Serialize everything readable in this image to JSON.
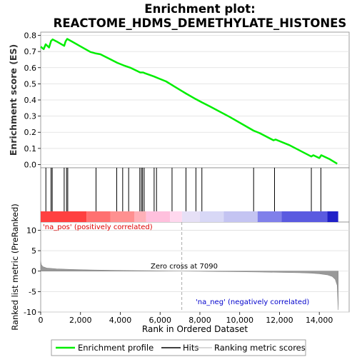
{
  "chart_data": {
    "type": "line",
    "title_line1": "Enrichment plot:",
    "title_line2": "REACTOME_HDMS_DEMETHYLATE_HISTONES",
    "xlabel": "Rank in Ordered Dataset",
    "es_panel": {
      "ylabel": "Enrichment score (ES)",
      "ylim": [
        -0.02,
        0.82
      ],
      "yticks": [
        "0.0",
        "0.1",
        "0.2",
        "0.3",
        "0.4",
        "0.5",
        "0.6",
        "0.7",
        "0.8"
      ],
      "ytick_values": [
        0.0,
        0.1,
        0.2,
        0.3,
        0.4,
        0.5,
        0.6,
        0.7,
        0.8
      ],
      "series_name": "Enrichment profile",
      "line_color": "#00ee00",
      "points": [
        [
          0,
          0.73
        ],
        [
          150,
          0.715
        ],
        [
          250,
          0.745
        ],
        [
          420,
          0.725
        ],
        [
          520,
          0.765
        ],
        [
          600,
          0.775
        ],
        [
          800,
          0.762
        ],
        [
          1000,
          0.748
        ],
        [
          1180,
          0.735
        ],
        [
          1250,
          0.762
        ],
        [
          1330,
          0.778
        ],
        [
          1600,
          0.76
        ],
        [
          2000,
          0.732
        ],
        [
          2500,
          0.697
        ],
        [
          2780,
          0.688
        ],
        [
          3000,
          0.683
        ],
        [
          3500,
          0.652
        ],
        [
          3850,
          0.63
        ],
        [
          4150,
          0.615
        ],
        [
          4500,
          0.6
        ],
        [
          5000,
          0.57
        ],
        [
          5150,
          0.57
        ],
        [
          5250,
          0.565
        ],
        [
          5700,
          0.545
        ],
        [
          5900,
          0.535
        ],
        [
          6300,
          0.515
        ],
        [
          6700,
          0.485
        ],
        [
          7300,
          0.44
        ],
        [
          7800,
          0.405
        ],
        [
          8100,
          0.385
        ],
        [
          8500,
          0.36
        ],
        [
          9500,
          0.295
        ],
        [
          10700,
          0.21
        ],
        [
          11000,
          0.195
        ],
        [
          11700,
          0.15
        ],
        [
          11800,
          0.155
        ],
        [
          12500,
          0.12
        ],
        [
          13600,
          0.05
        ],
        [
          13700,
          0.058
        ],
        [
          14000,
          0.04
        ],
        [
          14100,
          0.058
        ],
        [
          14500,
          0.035
        ],
        [
          14900,
          0.005
        ]
      ]
    },
    "hits_panel": {
      "series_name": "Hits",
      "hit_ranks": [
        260,
        520,
        580,
        1180,
        1300,
        1360,
        2780,
        3820,
        4120,
        4420,
        4980,
        5060,
        5120,
        5200,
        5700,
        5820,
        6600,
        7300,
        7800,
        8100,
        10700,
        11750,
        13600,
        14080
      ]
    },
    "heatmap_segments": [
      {
        "x0": 0,
        "x1": 2300,
        "color": "#ff4040"
      },
      {
        "x0": 2300,
        "x1": 3500,
        "color": "#ff7070"
      },
      {
        "x0": 3500,
        "x1": 4700,
        "color": "#ff9090"
      },
      {
        "x0": 4700,
        "x1": 5300,
        "color": "#ffb0b8"
      },
      {
        "x0": 5300,
        "x1": 6500,
        "color": "#ffc0dd"
      },
      {
        "x0": 6500,
        "x1": 7100,
        "color": "#ffd8ee"
      },
      {
        "x0": 7100,
        "x1": 8000,
        "color": "#e6e0f6"
      },
      {
        "x0": 8000,
        "x1": 9200,
        "color": "#d8d8f6"
      },
      {
        "x0": 9200,
        "x1": 10900,
        "color": "#c4c4f2"
      },
      {
        "x0": 10900,
        "x1": 12100,
        "color": "#8080ea"
      },
      {
        "x0": 12100,
        "x1": 14400,
        "color": "#5a5ae0"
      },
      {
        "x0": 14400,
        "x1": 14950,
        "color": "#2020c8"
      }
    ],
    "metric_panel": {
      "ylabel": "Ranked list metric (PreRanked)",
      "ylim": [
        -10,
        12
      ],
      "yticks": [
        "-10",
        "-5",
        "0",
        "5",
        "10"
      ],
      "ytick_values": [
        -10,
        -5,
        0,
        5,
        10
      ],
      "series_name": "Ranking metric scores",
      "fill_color": "#999999",
      "points": [
        [
          0,
          2.5
        ],
        [
          30,
          1.6
        ],
        [
          100,
          1.1
        ],
        [
          300,
          0.75
        ],
        [
          800,
          0.55
        ],
        [
          1500,
          0.42
        ],
        [
          2500,
          0.3
        ],
        [
          3500,
          0.22
        ],
        [
          4500,
          0.15
        ],
        [
          5500,
          0.09
        ],
        [
          6500,
          0.04
        ],
        [
          7090,
          0.0
        ],
        [
          8000,
          -0.05
        ],
        [
          9000,
          -0.1
        ],
        [
          10000,
          -0.16
        ],
        [
          11000,
          -0.22
        ],
        [
          12000,
          -0.3
        ],
        [
          13000,
          -0.4
        ],
        [
          13600,
          -0.5
        ],
        [
          14000,
          -0.65
        ],
        [
          14400,
          -0.9
        ],
        [
          14650,
          -1.3
        ],
        [
          14800,
          -2.0
        ],
        [
          14900,
          -3.5
        ],
        [
          14950,
          -9.5
        ]
      ],
      "pos_label": "'na_pos' (positively correlated)",
      "neg_label": "'na_neg' (negatively correlated)",
      "zero_cross_label": "Zero cross at 7090",
      "zero_cross": 7090,
      "pos_color": "#dd0000",
      "neg_color": "#0000cc"
    },
    "xlim": [
      0,
      15500
    ],
    "xticks": [
      "0",
      "2,000",
      "4,000",
      "6,000",
      "8,000",
      "10,000",
      "12,000",
      "14,000"
    ],
    "xtick_values": [
      0,
      2000,
      4000,
      6000,
      8000,
      10000,
      12000,
      14000
    ],
    "legend": {
      "entries": [
        "Enrichment profile",
        "Hits",
        "Ranking metric scores"
      ],
      "placement": "bottom"
    }
  }
}
